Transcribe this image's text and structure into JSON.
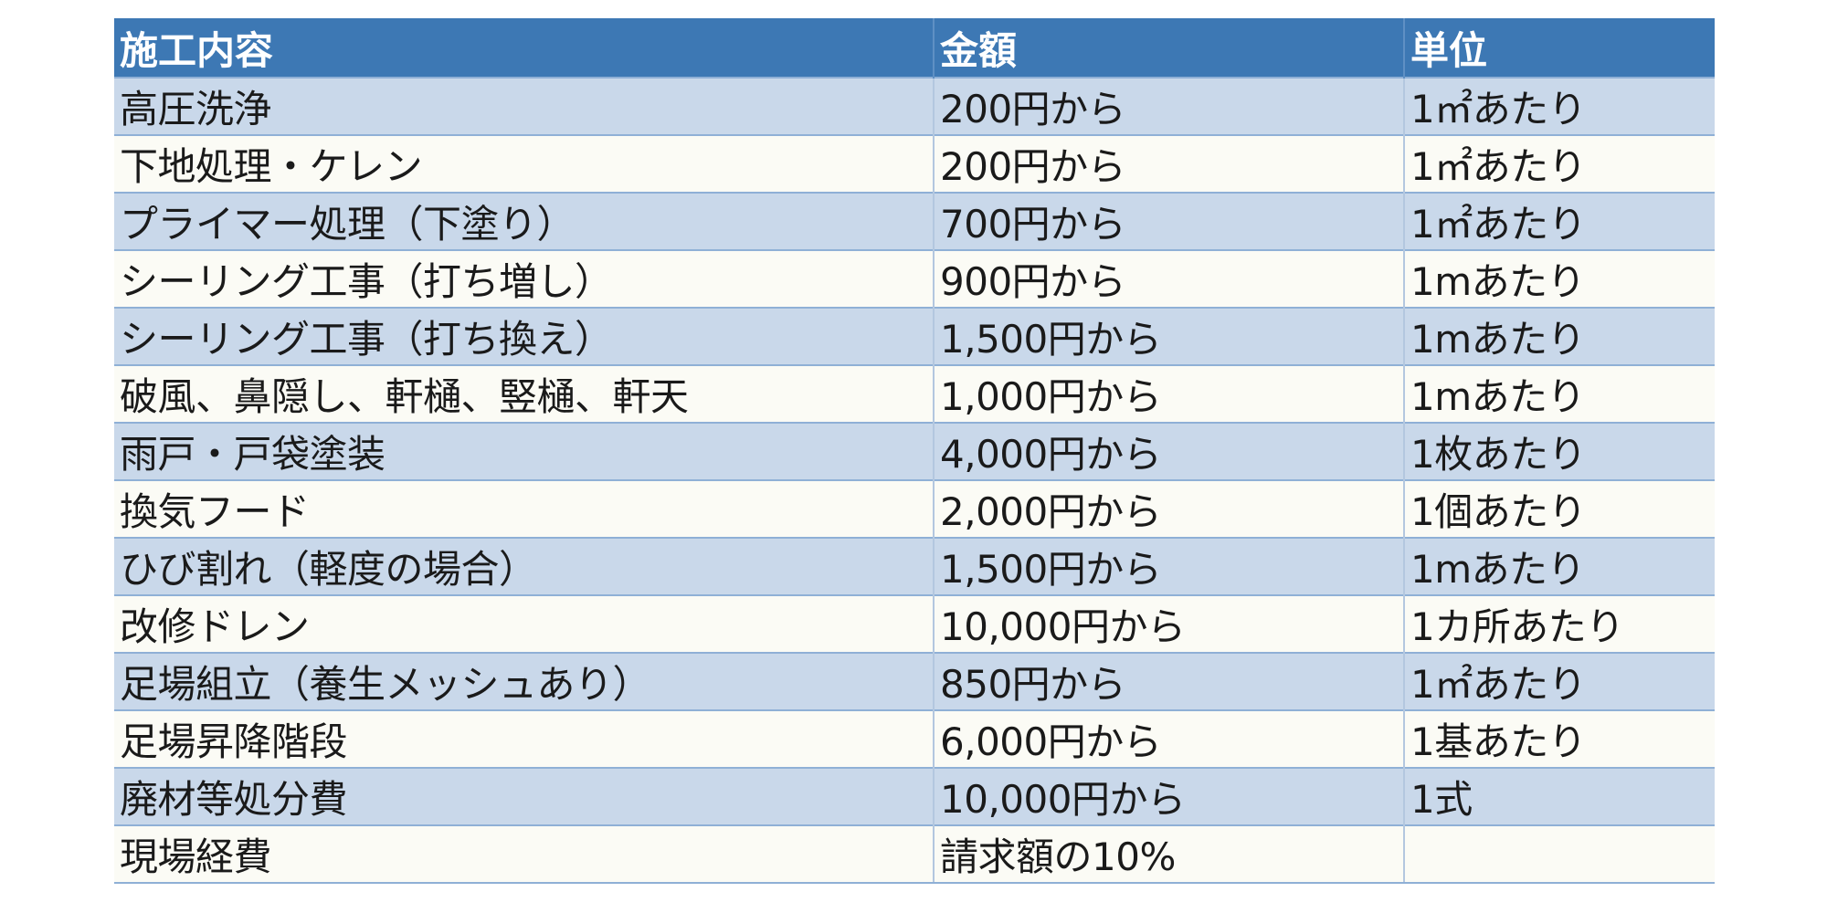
{
  "table": {
    "headers": [
      "施工内容",
      "金額",
      "単位"
    ],
    "rows": [
      [
        "高圧洗浄",
        "200円から",
        "1㎡あたり"
      ],
      [
        "下地処理・ケレン",
        "200円から",
        "1㎡あたり"
      ],
      [
        "プライマー処理（下塗り）",
        "700円から",
        "1㎡あたり"
      ],
      [
        "シーリング工事（打ち増し）",
        "900円から",
        "1mあたり"
      ],
      [
        "シーリング工事（打ち換え）",
        "1,500円から",
        "1mあたり"
      ],
      [
        "破風、鼻隠し、軒樋、竪樋、軒天",
        "1,000円から",
        "1mあたり"
      ],
      [
        "雨戸・戸袋塗装",
        "4,000円から",
        "1枚あたり"
      ],
      [
        "換気フード",
        "2,000円から",
        "1個あたり"
      ],
      [
        "ひび割れ（軽度の場合）",
        "1,500円から",
        "1mあたり"
      ],
      [
        "改修ドレン",
        "10,000円から",
        "1カ所あたり"
      ],
      [
        "足場組立（養生メッシュあり）",
        "850円から",
        "1㎡あたり"
      ],
      [
        "足場昇降階段",
        "6,000円から",
        "1基あたり"
      ],
      [
        "廃材等処分費",
        "10,000円から",
        "1式"
      ],
      [
        "現場経費",
        "請求額の10%",
        ""
      ]
    ]
  },
  "colors": {
    "header_bg": "#3d78b4",
    "row_odd_bg": "#c9d8ea",
    "row_even_bg": "#fbfbf5"
  }
}
